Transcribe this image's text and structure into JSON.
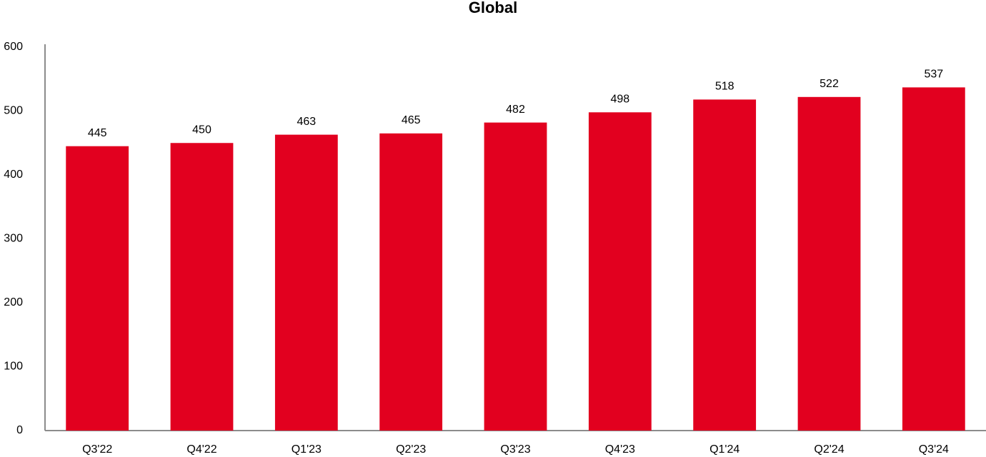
{
  "chart_data": {
    "type": "bar",
    "title": "Global",
    "categories": [
      "Q3'22",
      "Q4'22",
      "Q1'23",
      "Q2'23",
      "Q3'23",
      "Q4'23",
      "Q1'24",
      "Q2'24",
      "Q3'24"
    ],
    "values": [
      445,
      450,
      463,
      465,
      482,
      498,
      518,
      522,
      537
    ],
    "color": "#e2001f",
    "ylim": [
      0,
      600
    ],
    "yticks": [
      0,
      100,
      200,
      300,
      400,
      500,
      600
    ],
    "grid": false
  }
}
